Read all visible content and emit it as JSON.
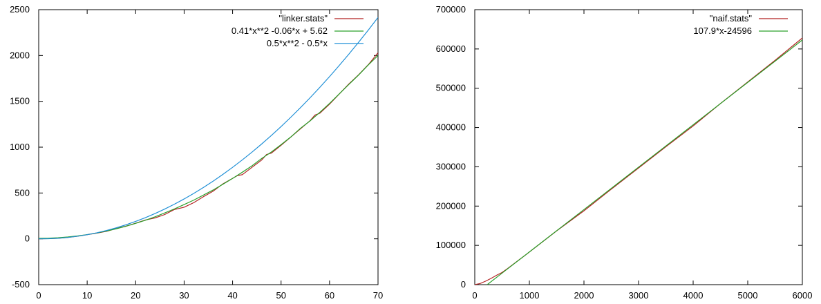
{
  "chart_data": [
    {
      "type": "line",
      "xlim": [
        0,
        70
      ],
      "ylim": [
        -500,
        2500
      ],
      "xticks": [
        "0",
        "10",
        "20",
        "30",
        "40",
        "50",
        "60",
        "70"
      ],
      "yticks": [
        "-500",
        "0",
        "500",
        "1000",
        "1500",
        "2000",
        "2500"
      ],
      "legend_position": "top-right",
      "grid": false,
      "series": [
        {
          "name": "\"linker.stats\"",
          "color": "#b22222",
          "x": [
            0,
            2,
            4,
            6,
            8,
            10,
            12,
            14,
            16,
            18,
            20,
            22,
            24,
            26,
            28,
            30,
            32,
            34,
            36,
            38,
            40,
            41,
            42,
            44,
            46,
            47,
            48,
            50,
            52,
            54,
            56,
            57,
            58,
            60,
            62,
            64,
            66,
            68,
            70
          ],
          "y": [
            0,
            2,
            6,
            15,
            28,
            45,
            62,
            82,
            112,
            138,
            170,
            205,
            228,
            265,
            320,
            345,
            395,
            460,
            520,
            600,
            660,
            690,
            700,
            780,
            860,
            920,
            935,
            1020,
            1110,
            1200,
            1290,
            1350,
            1370,
            1470,
            1580,
            1690,
            1790,
            1900,
            2030
          ]
        },
        {
          "name": "0.41*x**2 -0.06*x + 5.62",
          "color": "#2aa02a",
          "x": [
            0,
            2,
            4,
            6,
            8,
            10,
            12,
            14,
            16,
            18,
            20,
            22,
            24,
            26,
            28,
            30,
            32,
            34,
            36,
            38,
            40,
            42,
            44,
            46,
            48,
            50,
            52,
            54,
            56,
            58,
            60,
            62,
            64,
            66,
            68,
            70
          ],
          "y": [
            5.62,
            7.1,
            12.0,
            20.0,
            31.3,
            46.0,
            64.0,
            85.1,
            109.6,
            137.3,
            168.4,
            202.7,
            240.4,
            282.3,
            326.3,
            373.8,
            422.5,
            477.5,
            533.0,
            595.3,
            659.2,
            726.3,
            796.7,
            876.4,
            947.2,
            1027.1,
            1111.0,
            1206.0,
            1287.2,
            1380.3,
            1477.2,
            1581.0,
            1685.0,
            1787.1,
            1897.7,
            2000.8
          ]
        },
        {
          "name": "0.5*x**2 - 0.5*x",
          "color": "#1f8fd6",
          "x": [
            0,
            2,
            4,
            6,
            8,
            10,
            12,
            14,
            16,
            18,
            20,
            22,
            24,
            26,
            28,
            30,
            32,
            34,
            36,
            38,
            40,
            42,
            44,
            46,
            48,
            50,
            52,
            54,
            56,
            58,
            60,
            62,
            64,
            66,
            68,
            70
          ],
          "y": [
            0,
            1,
            6,
            15,
            28,
            45,
            66,
            91,
            120,
            153,
            190,
            231,
            276,
            325,
            378,
            435,
            496,
            561,
            630,
            703,
            780,
            861,
            946,
            1035,
            1128,
            1225,
            1326,
            1431,
            1540,
            1653,
            1770,
            1891,
            2016,
            2145,
            2278,
            2415
          ]
        }
      ]
    },
    {
      "type": "line",
      "xlim": [
        0,
        6000
      ],
      "ylim": [
        0,
        700000
      ],
      "xticks": [
        "0",
        "1000",
        "2000",
        "3000",
        "4000",
        "5000",
        "6000"
      ],
      "yticks": [
        "0",
        "100000",
        "200000",
        "300000",
        "400000",
        "500000",
        "600000",
        "700000"
      ],
      "legend_position": "top-right",
      "grid": false,
      "series": [
        {
          "name": "\"naif.stats\"",
          "color": "#b22222",
          "x": [
            0,
            100,
            200,
            300,
            400,
            500,
            600,
            800,
            1000,
            1500,
            2000,
            2500,
            3000,
            3500,
            4000,
            4500,
            5000,
            5500,
            6000
          ],
          "y": [
            0,
            3000,
            9000,
            16000,
            24000,
            31000,
            41000,
            62000,
            83000,
            137000,
            188000,
            243000,
            297000,
            351000,
            404000,
            461000,
            516000,
            571000,
            628000
          ]
        },
        {
          "name": "107.9*x-24596",
          "color": "#2aa02a",
          "x": [
            228,
            500,
            1000,
            2000,
            3000,
            4000,
            5000,
            6000
          ],
          "y": [
            0,
            29354,
            83304,
            191204,
            299104,
            407004,
            514904,
            622804
          ]
        }
      ]
    }
  ]
}
